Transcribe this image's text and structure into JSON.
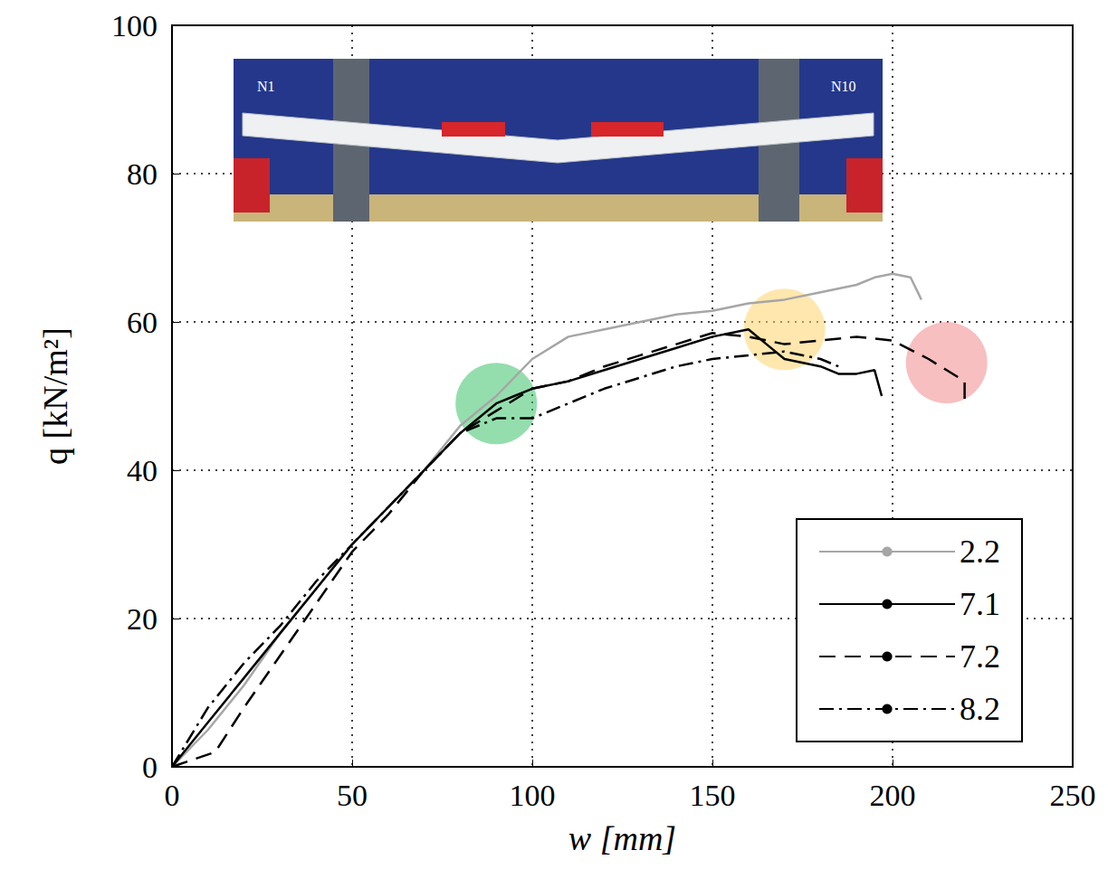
{
  "chart_data": {
    "type": "line",
    "x_label": "w [mm]",
    "y_label": "q [kN/m²]",
    "xlim": [
      0,
      250
    ],
    "xticks": [
      0,
      50,
      100,
      150,
      200,
      250
    ],
    "ylim": [
      0,
      100
    ],
    "yticks": [
      0,
      20,
      40,
      60,
      80,
      100
    ],
    "grid": true,
    "legend": "lower right",
    "annotations": [
      "N1",
      "N10"
    ],
    "highlights": [
      {
        "x": 90,
        "y": 49,
        "color": "#3cc36a"
      },
      {
        "x": 170,
        "y": 59,
        "color": "#ffd36b"
      },
      {
        "x": 215,
        "y": 54.5,
        "color": "#f08a8a"
      }
    ],
    "series": [
      {
        "name": "2.2",
        "color": "#a6a6a6",
        "line_style": "solid",
        "x": [
          0,
          10,
          20,
          30,
          40,
          50,
          60,
          70,
          80,
          90,
          100,
          110,
          120,
          130,
          140,
          150,
          160,
          170,
          180,
          190,
          195,
          200,
          205,
          208
        ],
        "values": [
          0,
          5,
          11,
          18,
          24,
          30,
          35,
          40,
          46,
          50,
          55,
          58,
          59,
          60,
          61,
          61.5,
          62.5,
          63,
          64,
          65,
          66,
          66.5,
          66,
          63
        ]
      },
      {
        "name": "7.1",
        "color": "#000000",
        "line_style": "solid",
        "x": [
          0,
          10,
          20,
          30,
          40,
          50,
          60,
          70,
          80,
          90,
          95,
          100,
          110,
          120,
          130,
          140,
          150,
          160,
          165,
          170,
          180,
          185,
          190,
          195,
          197
        ],
        "values": [
          0,
          6,
          12,
          18,
          24,
          30,
          35,
          40,
          45,
          49,
          50,
          51,
          52,
          53.5,
          55,
          56.5,
          58,
          59,
          57,
          55,
          54,
          53,
          53,
          53.5,
          50
        ]
      },
      {
        "name": "7.2",
        "color": "#000000",
        "line_style": "dashed",
        "x": [
          0,
          12,
          20,
          30,
          40,
          50,
          60,
          70,
          80,
          90,
          100,
          110,
          120,
          130,
          140,
          150,
          160,
          170,
          180,
          190,
          200,
          210,
          215,
          220,
          220
        ],
        "values": [
          0,
          2,
          8,
          15,
          22,
          29,
          34,
          40,
          45,
          48,
          51,
          52,
          54,
          55.5,
          57,
          58.5,
          58,
          57,
          57.5,
          58,
          57.5,
          55,
          53.5,
          52,
          49.5
        ]
      },
      {
        "name": "8.2",
        "color": "#000000",
        "line_style": "dashdot",
        "x": [
          0,
          10,
          20,
          30,
          40,
          50,
          60,
          70,
          80,
          90,
          100,
          110,
          120,
          130,
          140,
          150,
          160,
          170,
          180,
          185
        ],
        "values": [
          0,
          8,
          14,
          19,
          25,
          30,
          35,
          40,
          45,
          47,
          47,
          49,
          51,
          52.5,
          54,
          55,
          55.5,
          56,
          55,
          54
        ]
      }
    ]
  }
}
